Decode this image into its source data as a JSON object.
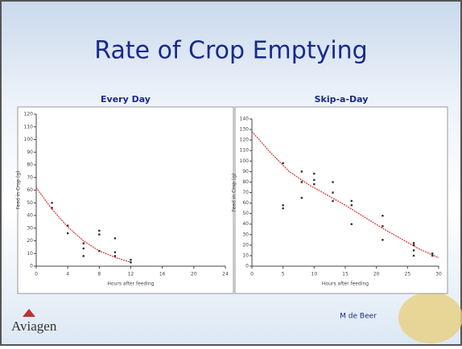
{
  "title": "Rate of Crop Emptying",
  "author": "M de Beer",
  "logo": "Aviagen",
  "chart_data": [
    {
      "type": "scatter",
      "title": "Every Day",
      "x_label": "Hours after feeding",
      "y_label": "Feed in Crop (g)",
      "x": [
        2,
        2,
        4,
        4,
        6,
        6,
        6,
        8,
        8,
        8,
        10,
        10,
        10,
        12,
        12
      ],
      "values": [
        50,
        46,
        32,
        26,
        18,
        14,
        8,
        28,
        25,
        12,
        22,
        11,
        8,
        5,
        3
      ],
      "color": "#333333",
      "trend": {
        "x": [
          0,
          2,
          4,
          6,
          8,
          10,
          12
        ],
        "values": [
          62,
          45,
          31,
          20,
          12,
          7,
          3
        ],
        "color": "#e03030"
      },
      "xlim": [
        0,
        24
      ],
      "xticks": [
        0,
        4,
        8,
        12,
        16,
        20,
        24
      ],
      "ylim": [
        0,
        120
      ],
      "yticks": [
        0,
        10,
        20,
        30,
        40,
        50,
        60,
        70,
        80,
        90,
        100,
        110,
        120
      ]
    },
    {
      "type": "scatter",
      "title": "Skip-a-Day",
      "x_label": "Hours after feeding",
      "y_label": "Feed in Crop (g)",
      "x": [
        5,
        5,
        5,
        8,
        8,
        8,
        10,
        10,
        10,
        13,
        13,
        13,
        16,
        16,
        16,
        21,
        21,
        21,
        26,
        26,
        26,
        26,
        29,
        29
      ],
      "values": [
        98,
        58,
        55,
        90,
        80,
        65,
        88,
        82,
        78,
        80,
        70,
        62,
        62,
        58,
        40,
        48,
        38,
        25,
        22,
        20,
        15,
        10,
        12,
        10
      ],
      "color": "#333333",
      "trend": {
        "x": [
          0,
          3,
          6,
          9,
          12,
          15,
          18,
          21,
          24,
          27,
          30
        ],
        "values": [
          128,
          108,
          90,
          78,
          68,
          58,
          47,
          36,
          26,
          16,
          8
        ],
        "color": "#e03030"
      },
      "xlim": [
        0,
        30
      ],
      "xticks": [
        0,
        5,
        10,
        15,
        20,
        25,
        30
      ],
      "ylim": [
        0,
        140
      ],
      "yticks": [
        0,
        10,
        20,
        30,
        40,
        50,
        60,
        70,
        80,
        90,
        100,
        110,
        120,
        130,
        140
      ]
    }
  ]
}
